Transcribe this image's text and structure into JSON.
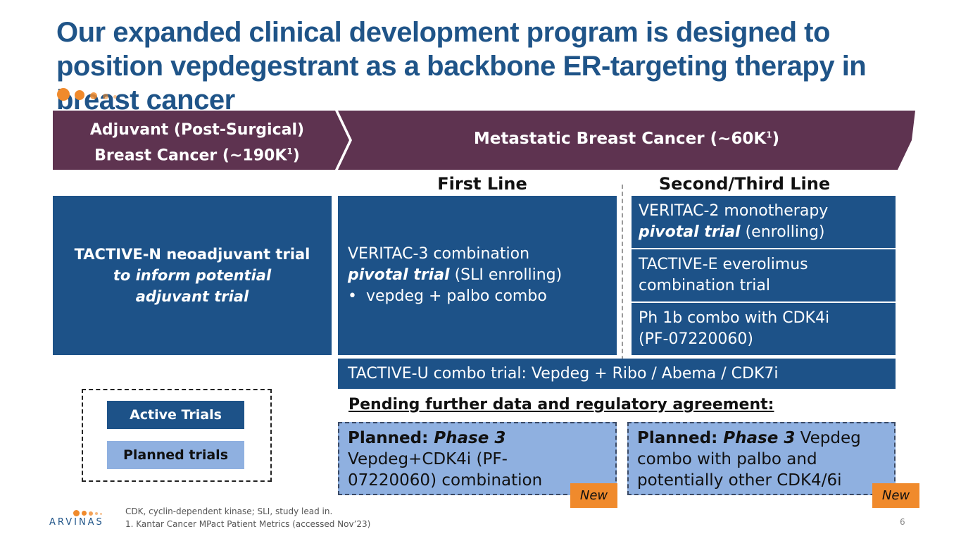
{
  "title": "Our expanded clinical development program is designed to position vepdegestrant as a backbone ER-targeting therapy in breast cancer",
  "banner": {
    "adjuvant_line1": "Adjuvant (Post-Surgical)",
    "adjuvant_line2": "Breast Cancer  (~190K",
    "adjuvant_sup": "1",
    "adjuvant_close": ")",
    "metastatic": "Metastatic Breast Cancer (~60K",
    "metastatic_sup": "1",
    "metastatic_close": ")"
  },
  "columns": {
    "first": "First Line",
    "second": "Second/Third Line"
  },
  "adjuvant_box": {
    "line1": "TACTIVE-N neoadjuvant trial",
    "line2": "to inform potential",
    "line3": "adjuvant trial"
  },
  "first_line_box": {
    "line1": "VERITAC-3 combination",
    "bold_italic": "pivotal trial",
    "rest": " (SLI enrolling)",
    "bullet": "vepdeg + palbo combo"
  },
  "second_line": {
    "box1_line1": "VERITAC-2 monotherapy",
    "box1_bold_italic": "pivotal trial",
    "box1_rest": " (enrolling)",
    "box2_line1": "TACTIVE-E everolimus",
    "box2_line2": "combination trial",
    "box3_line1": "Ph 1b combo with CDK4i",
    "box3_line2": "(PF-07220060)"
  },
  "tactive_u": "TACTIVE-U combo trial: Vepdeg + Ribo / Abema / CDK7i",
  "pending": "Pending further data and regulatory agreement:",
  "planned_left": {
    "label": "Planned: ",
    "phase": "Phase 3",
    "line2": "Vepdeg+CDK4i (PF-",
    "line3": "07220060) combination"
  },
  "planned_right": {
    "label": "Planned: ",
    "phase": "Phase 3",
    "rest": " Vepdeg",
    "line2": "combo with palbo and",
    "line3": "potentially other CDK4/6i"
  },
  "new_badge": "New",
  "legend": {
    "active": "Active Trials",
    "planned": "Planned trials"
  },
  "footnotes": {
    "line1": "CDK, cyclin-dependent kinase; SLI, study lead in.",
    "line2": "1. Kantar Cancer MPact Patient Metrics (accessed Nov’23)"
  },
  "logo_text": "ARVINAS",
  "page_number": "6",
  "colors": {
    "title": "#1f5488",
    "banner": "#5e3350",
    "active_box": "#1d5288",
    "planned_box": "#8fb0e0",
    "accent_orange": "#f08a2c"
  }
}
